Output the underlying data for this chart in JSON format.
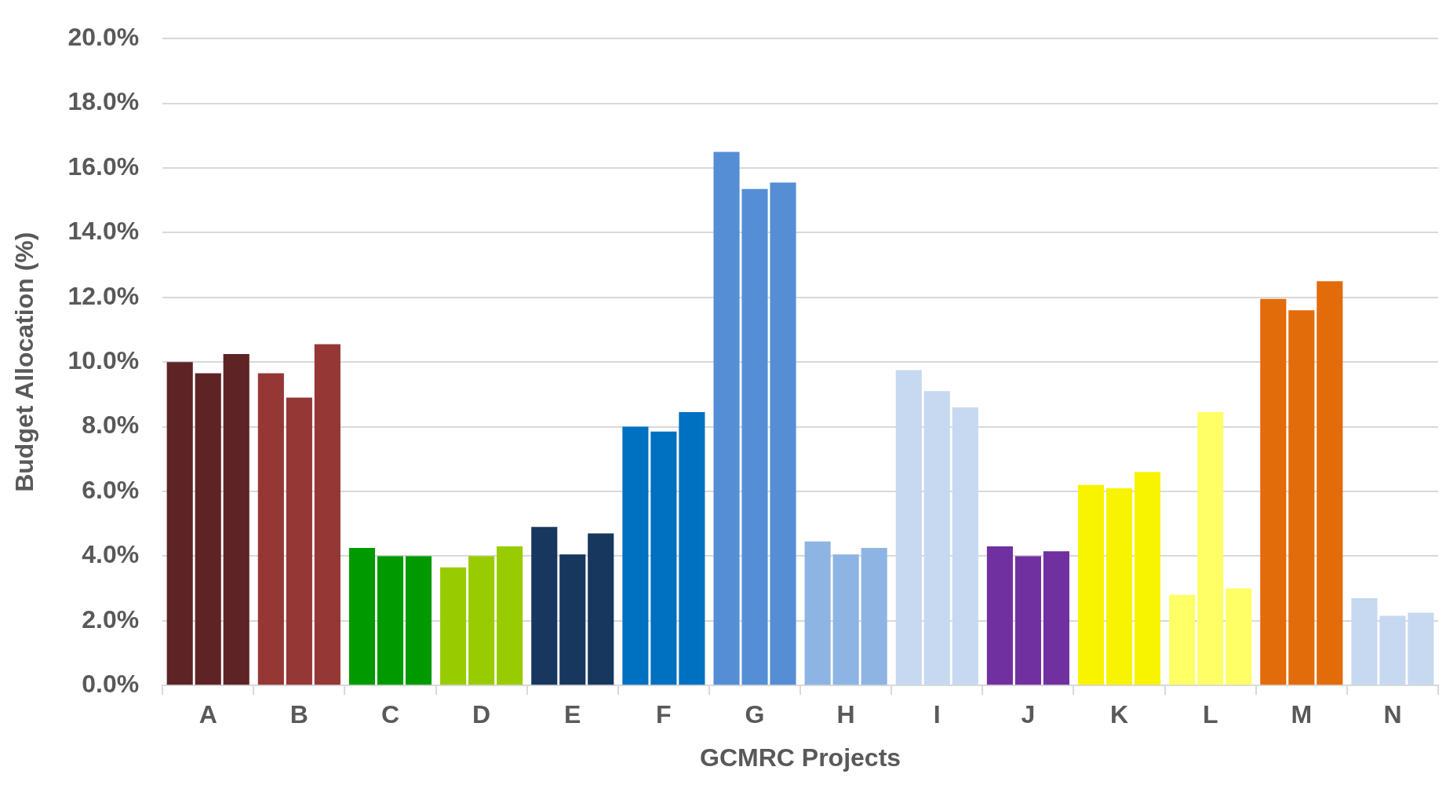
{
  "chart_data": {
    "type": "bar",
    "xlabel": "GCMRC Projects",
    "ylabel": "Budget Allocation (%)",
    "categories": [
      "A",
      "B",
      "C",
      "D",
      "E",
      "F",
      "G",
      "H",
      "I",
      "J",
      "K",
      "L",
      "M",
      "N"
    ],
    "series": [
      {
        "colors": [
          "#5e2324",
          "#953735",
          "#009900",
          "#99cc00",
          "#17375e",
          "#0070c0",
          "#558ed5",
          "#8eb4e3",
          "#c6d9f1",
          "#7030a0",
          "#f8f400",
          "#ffff66",
          "#e26b0a",
          "#c6d9f1"
        ],
        "values": [
          10.0,
          9.65,
          4.25,
          3.65,
          4.9,
          8.0,
          16.5,
          4.45,
          9.75,
          4.3,
          6.2,
          2.8,
          11.95,
          2.7
        ]
      },
      {
        "colors": [
          "#5e2324",
          "#953735",
          "#009900",
          "#99cc00",
          "#17375e",
          "#0070c0",
          "#558ed5",
          "#8eb4e3",
          "#c6d9f1",
          "#7030a0",
          "#f8f400",
          "#ffff66",
          "#e26b0a",
          "#c6d9f1"
        ],
        "values": [
          9.65,
          8.9,
          4.0,
          4.0,
          4.05,
          7.85,
          15.35,
          4.05,
          9.1,
          4.0,
          6.1,
          8.45,
          11.6,
          2.15
        ]
      },
      {
        "colors": [
          "#5e2324",
          "#953735",
          "#009900",
          "#99cc00",
          "#17375e",
          "#0070c0",
          "#558ed5",
          "#8eb4e3",
          "#c6d9f1",
          "#7030a0",
          "#f8f400",
          "#ffff66",
          "#e26b0a",
          "#c6d9f1"
        ],
        "values": [
          10.25,
          10.55,
          4.0,
          4.3,
          4.7,
          8.45,
          15.55,
          4.25,
          8.6,
          4.15,
          6.6,
          3.0,
          12.5,
          2.25
        ]
      }
    ],
    "ylim": [
      0,
      20
    ],
    "yticks": [
      {
        "value": 0,
        "label": "0.0%"
      },
      {
        "value": 2,
        "label": "2.0%"
      },
      {
        "value": 4,
        "label": "4.0%"
      },
      {
        "value": 6,
        "label": "6.0%"
      },
      {
        "value": 8,
        "label": "8.0%"
      },
      {
        "value": 10,
        "label": "10.0%"
      },
      {
        "value": 12,
        "label": "12.0%"
      },
      {
        "value": 14,
        "label": "14.0%"
      },
      {
        "value": 16,
        "label": "16.0%"
      },
      {
        "value": 18,
        "label": "18.0%"
      },
      {
        "value": 20,
        "label": "20.0%"
      }
    ],
    "grid": "y",
    "legend": false
  }
}
